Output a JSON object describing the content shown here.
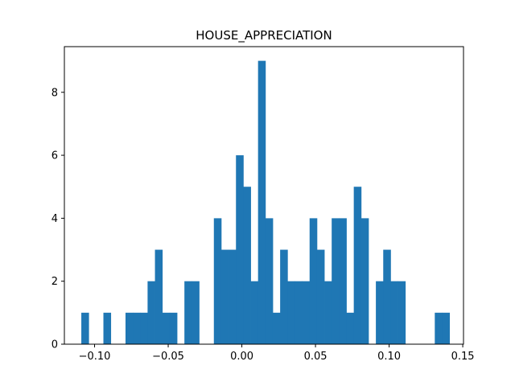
{
  "chart_data": {
    "type": "bar",
    "title": "HOUSE_APPRECIATION",
    "xlabel": "",
    "ylabel": "",
    "xlim": [
      -0.1205,
      0.1505
    ],
    "ylim": [
      0,
      9.45
    ],
    "bar_color": "#1f77b4",
    "grid": false,
    "bins": [
      {
        "x0": -0.109,
        "x1": -0.104,
        "count": 1
      },
      {
        "x0": -0.094,
        "x1": -0.089,
        "count": 1
      },
      {
        "x0": -0.079,
        "x1": -0.074,
        "count": 1
      },
      {
        "x0": -0.074,
        "x1": -0.069,
        "count": 1
      },
      {
        "x0": -0.069,
        "x1": -0.064,
        "count": 1
      },
      {
        "x0": -0.064,
        "x1": -0.059,
        "count": 2
      },
      {
        "x0": -0.059,
        "x1": -0.054,
        "count": 3
      },
      {
        "x0": -0.054,
        "x1": -0.049,
        "count": 1
      },
      {
        "x0": -0.049,
        "x1": -0.044,
        "count": 1
      },
      {
        "x0": -0.039,
        "x1": -0.034,
        "count": 2
      },
      {
        "x0": -0.034,
        "x1": -0.029,
        "count": 2
      },
      {
        "x0": -0.019,
        "x1": -0.014,
        "count": 4
      },
      {
        "x0": -0.014,
        "x1": -0.009,
        "count": 3
      },
      {
        "x0": -0.009,
        "x1": -0.004,
        "count": 3
      },
      {
        "x0": -0.004,
        "x1": 0.001,
        "count": 6
      },
      {
        "x0": 0.001,
        "x1": 0.006,
        "count": 5
      },
      {
        "x0": 0.006,
        "x1": 0.011,
        "count": 2
      },
      {
        "x0": 0.011,
        "x1": 0.016,
        "count": 9
      },
      {
        "x0": 0.016,
        "x1": 0.021,
        "count": 4
      },
      {
        "x0": 0.021,
        "x1": 0.026,
        "count": 1
      },
      {
        "x0": 0.026,
        "x1": 0.031,
        "count": 3
      },
      {
        "x0": 0.031,
        "x1": 0.036,
        "count": 2
      },
      {
        "x0": 0.036,
        "x1": 0.041,
        "count": 2
      },
      {
        "x0": 0.041,
        "x1": 0.046,
        "count": 2
      },
      {
        "x0": 0.046,
        "x1": 0.051,
        "count": 4
      },
      {
        "x0": 0.051,
        "x1": 0.056,
        "count": 3
      },
      {
        "x0": 0.056,
        "x1": 0.061,
        "count": 2
      },
      {
        "x0": 0.061,
        "x1": 0.066,
        "count": 4
      },
      {
        "x0": 0.066,
        "x1": 0.071,
        "count": 4
      },
      {
        "x0": 0.071,
        "x1": 0.076,
        "count": 1
      },
      {
        "x0": 0.076,
        "x1": 0.081,
        "count": 5
      },
      {
        "x0": 0.081,
        "x1": 0.086,
        "count": 4
      },
      {
        "x0": 0.091,
        "x1": 0.096,
        "count": 2
      },
      {
        "x0": 0.096,
        "x1": 0.101,
        "count": 3
      },
      {
        "x0": 0.101,
        "x1": 0.106,
        "count": 2
      },
      {
        "x0": 0.106,
        "x1": 0.111,
        "count": 2
      },
      {
        "x0": 0.131,
        "x1": 0.136,
        "count": 1
      },
      {
        "x0": 0.136,
        "x1": 0.141,
        "count": 1
      }
    ],
    "x_ticks": [
      {
        "value": -0.1,
        "label": "−0.10"
      },
      {
        "value": -0.05,
        "label": "−0.05"
      },
      {
        "value": 0.0,
        "label": "0.00"
      },
      {
        "value": 0.05,
        "label": "0.05"
      },
      {
        "value": 0.1,
        "label": "0.10"
      },
      {
        "value": 0.15,
        "label": "0.15"
      }
    ],
    "y_ticks": [
      {
        "value": 0,
        "label": "0"
      },
      {
        "value": 2,
        "label": "2"
      },
      {
        "value": 4,
        "label": "4"
      },
      {
        "value": 6,
        "label": "6"
      },
      {
        "value": 8,
        "label": "8"
      }
    ]
  }
}
